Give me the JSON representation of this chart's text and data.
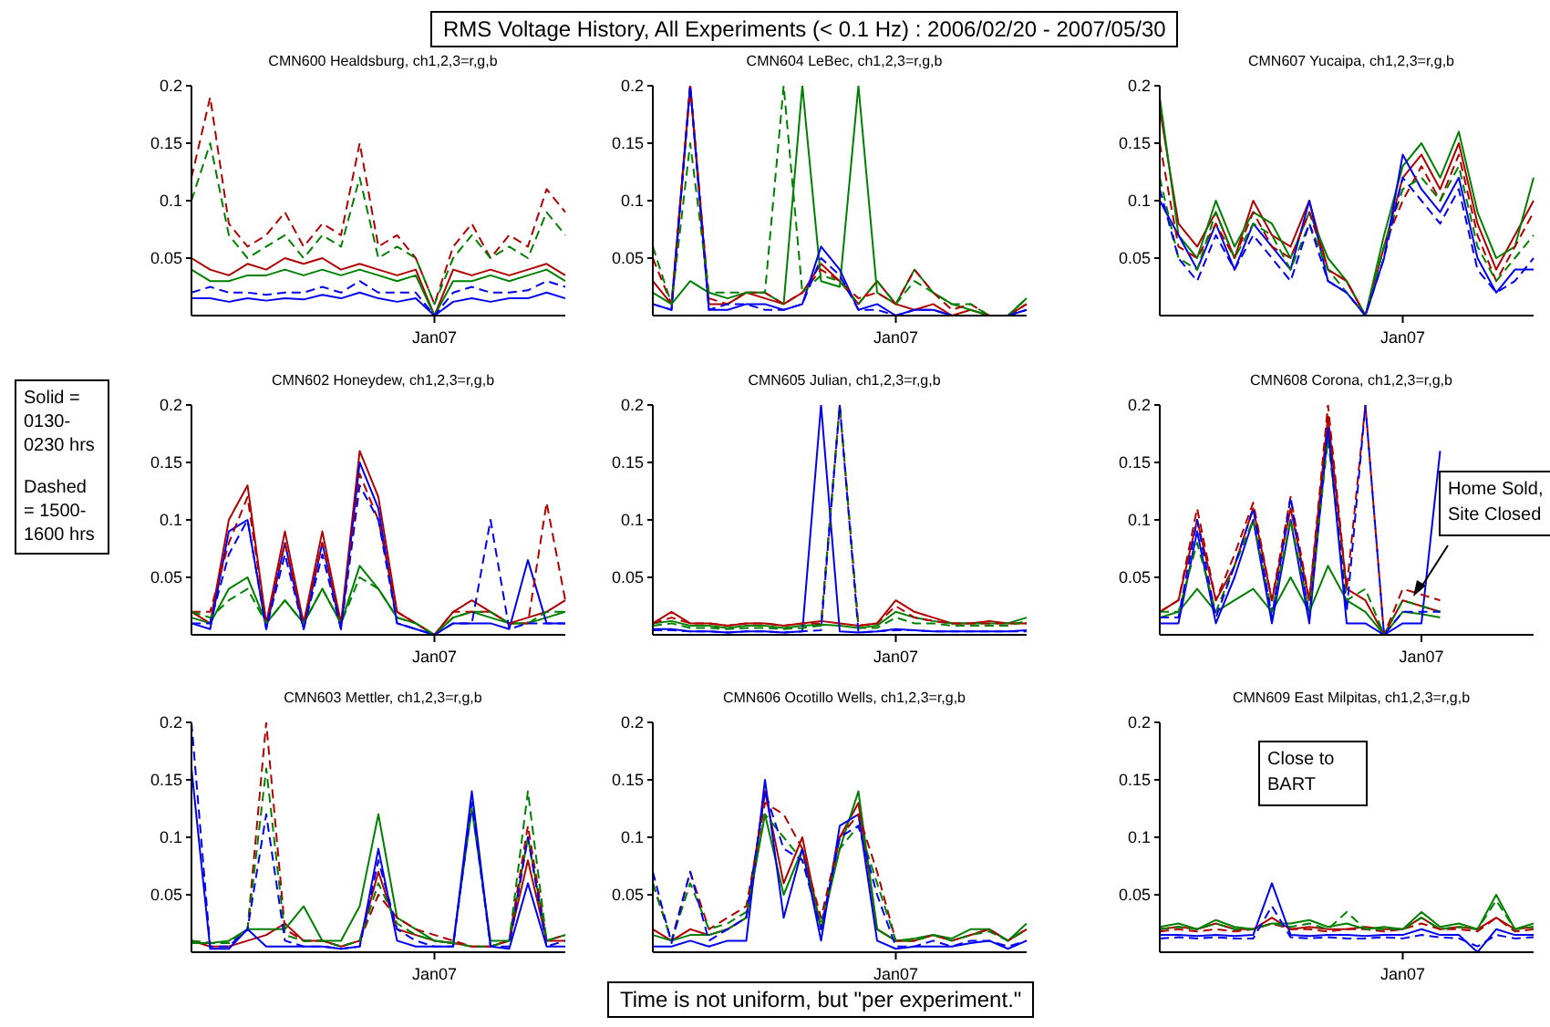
{
  "chart_data": [
    {
      "type": "line",
      "title": "CMN600 Healdsburg, ch1,2,3=r,g,b",
      "categories": [
        null,
        null,
        null,
        null,
        null,
        null,
        null,
        null,
        null,
        null,
        null,
        null,
        null,
        "Jan07",
        null,
        null,
        null,
        null,
        null,
        null,
        null
      ],
      "ylim": [
        0,
        0.2
      ],
      "yticks": [
        0.05,
        0.1,
        0.15,
        0.2
      ],
      "series": [
        {
          "color": "#b00000",
          "values": [
            0.05,
            0.04,
            0.035,
            0.045,
            0.04,
            0.05,
            0.045,
            0.05,
            0.04,
            0.045,
            0.04,
            0.035,
            0.04,
            0,
            0.04,
            0.035,
            0.04,
            0.035,
            0.04,
            0.045,
            0.035
          ]
        },
        {
          "color": "#008000",
          "values": [
            0.04,
            0.03,
            0.03,
            0.035,
            0.035,
            0.04,
            0.035,
            0.04,
            0.035,
            0.04,
            0.035,
            0.03,
            0.035,
            0,
            0.03,
            0.03,
            0.035,
            0.03,
            0.035,
            0.04,
            0.03
          ]
        },
        {
          "color": "#0000ee",
          "values": [
            0.015,
            0.015,
            0.012,
            0.015,
            0.013,
            0.015,
            0.014,
            0.018,
            0.015,
            0.02,
            0.015,
            0.012,
            0.015,
            0,
            0.012,
            0.015,
            0.012,
            0.015,
            0.015,
            0.02,
            0.015
          ]
        },
        {
          "color": "#b00000",
          "line_style": "dashed",
          "values": [
            0.12,
            0.19,
            0.08,
            0.06,
            0.07,
            0.09,
            0.06,
            0.08,
            0.07,
            0.15,
            0.06,
            0.07,
            0.05,
            0.01,
            0.06,
            0.08,
            0.05,
            0.07,
            0.06,
            0.11,
            0.09
          ]
        },
        {
          "color": "#008000",
          "line_style": "dashed",
          "values": [
            0.1,
            0.15,
            0.07,
            0.05,
            0.06,
            0.07,
            0.05,
            0.07,
            0.06,
            0.12,
            0.05,
            0.06,
            0.05,
            0.01,
            0.05,
            0.07,
            0.05,
            0.06,
            0.05,
            0.09,
            0.07
          ]
        },
        {
          "color": "#0000ee",
          "line_style": "dashed",
          "values": [
            0.02,
            0.025,
            0.02,
            0.02,
            0.018,
            0.02,
            0.02,
            0.025,
            0.02,
            0.03,
            0.02,
            0.02,
            0.02,
            0,
            0.02,
            0.025,
            0.02,
            0.02,
            0.022,
            0.03,
            0.025
          ]
        }
      ]
    },
    {
      "type": "line",
      "title": "CMN604 LeBec, ch1,2,3=r,g,b",
      "categories": [
        null,
        null,
        null,
        null,
        null,
        null,
        null,
        null,
        null,
        null,
        null,
        null,
        null,
        "Jan07",
        null,
        null,
        null,
        null,
        null,
        null,
        null
      ],
      "ylim": [
        0,
        0.2
      ],
      "yticks": [
        0.05,
        0.1,
        0.15,
        0.2
      ],
      "series": [
        {
          "color": "#b00000",
          "values": [
            0.03,
            0.01,
            0.2,
            0.01,
            0.01,
            0.02,
            0.015,
            0.01,
            0.02,
            0.045,
            0.03,
            0.01,
            0.03,
            0.01,
            0.005,
            0.01,
            0,
            0.005,
            0,
            0,
            0.01
          ]
        },
        {
          "color": "#008000",
          "values": [
            0.02,
            0.01,
            0.03,
            0.02,
            0.015,
            0.02,
            0.02,
            0.01,
            0.2,
            0.03,
            0.025,
            0.2,
            0.02,
            0.01,
            0.04,
            0.02,
            0.01,
            0.005,
            0,
            0,
            0.015
          ]
        },
        {
          "color": "#0000ee",
          "values": [
            0.01,
            0.005,
            0.2,
            0.005,
            0.005,
            0.01,
            0.01,
            0.005,
            0.01,
            0.06,
            0.04,
            0.005,
            0.01,
            0,
            0.005,
            0.005,
            0,
            0,
            0,
            0,
            0.005
          ]
        },
        {
          "color": "#b00000",
          "line_style": "dashed",
          "values": [
            0.05,
            0.01,
            0.2,
            0.015,
            0.01,
            0.02,
            0.02,
            0.01,
            0.02,
            0.04,
            0.03,
            0.015,
            0.02,
            0.01,
            0.04,
            0.02,
            0.005,
            0.01,
            0,
            0,
            0.01
          ]
        },
        {
          "color": "#008000",
          "line_style": "dashed",
          "values": [
            0.06,
            0.01,
            0.15,
            0.02,
            0.02,
            0.02,
            0.02,
            0.2,
            0.02,
            0.035,
            0.03,
            0.01,
            0.03,
            0.01,
            0.03,
            0.02,
            0.01,
            0.01,
            0,
            0,
            0.015
          ]
        },
        {
          "color": "#0000ee",
          "line_style": "dashed",
          "values": [
            0.01,
            0.005,
            0.2,
            0.005,
            0.01,
            0.01,
            0.005,
            0.005,
            0.01,
            0.05,
            0.035,
            0.005,
            0.005,
            0,
            0.005,
            0.005,
            0,
            0,
            0,
            0,
            0.005
          ]
        }
      ]
    },
    {
      "type": "line",
      "title": "CMN607 Yucaipa, ch1,2,3=r,g,b",
      "categories": [
        null,
        null,
        null,
        null,
        null,
        null,
        null,
        null,
        null,
        null,
        null,
        null,
        null,
        "Jan07",
        null,
        null,
        null,
        null,
        null,
        null,
        null
      ],
      "ylim": [
        0,
        0.2
      ],
      "yticks": [
        0.05,
        0.1,
        0.15,
        0.2
      ],
      "series": [
        {
          "color": "#b00000",
          "values": [
            0.18,
            0.08,
            0.06,
            0.09,
            0.05,
            0.1,
            0.07,
            0.06,
            0.1,
            0.04,
            0.03,
            0,
            0.06,
            0.12,
            0.14,
            0.11,
            0.15,
            0.08,
            0.04,
            0.07,
            0.1
          ]
        },
        {
          "color": "#008000",
          "values": [
            0.19,
            0.07,
            0.05,
            0.1,
            0.06,
            0.09,
            0.08,
            0.05,
            0.09,
            0.05,
            0.03,
            0,
            0.07,
            0.13,
            0.15,
            0.12,
            0.16,
            0.09,
            0.05,
            0.06,
            0.12
          ]
        },
        {
          "color": "#0000ee",
          "values": [
            0.1,
            0.07,
            0.04,
            0.08,
            0.04,
            0.08,
            0.06,
            0.04,
            0.1,
            0.03,
            0.02,
            0,
            0.05,
            0.14,
            0.11,
            0.09,
            0.12,
            0.05,
            0.02,
            0.04,
            0.04
          ]
        },
        {
          "color": "#b00000",
          "line_style": "dashed",
          "values": [
            0.15,
            0.06,
            0.05,
            0.08,
            0.05,
            0.09,
            0.06,
            0.05,
            0.09,
            0.04,
            0.03,
            0,
            0.06,
            0.1,
            0.13,
            0.1,
            0.14,
            0.07,
            0.03,
            0.06,
            0.09
          ]
        },
        {
          "color": "#008000",
          "line_style": "dashed",
          "values": [
            0.12,
            0.05,
            0.04,
            0.09,
            0.05,
            0.08,
            0.07,
            0.04,
            0.08,
            0.04,
            0.02,
            0,
            0.06,
            0.11,
            0.12,
            0.1,
            0.13,
            0.06,
            0.03,
            0.05,
            0.07
          ]
        },
        {
          "color": "#0000ee",
          "line_style": "dashed",
          "values": [
            0.11,
            0.05,
            0.03,
            0.07,
            0.04,
            0.07,
            0.05,
            0.03,
            0.08,
            0.03,
            0.02,
            0,
            0.05,
            0.12,
            0.1,
            0.08,
            0.11,
            0.04,
            0.02,
            0.03,
            0.05
          ]
        }
      ]
    },
    {
      "type": "line",
      "title": "CMN602 Honeydew, ch1,2,3=r,g,b",
      "categories": [
        null,
        null,
        null,
        null,
        null,
        null,
        null,
        null,
        null,
        null,
        null,
        null,
        null,
        "Jan07",
        null,
        null,
        null,
        null,
        null,
        null,
        null
      ],
      "ylim": [
        0,
        0.2
      ],
      "yticks": [
        0.05,
        0.1,
        0.15,
        0.2
      ],
      "series": [
        {
          "color": "#b00000",
          "values": [
            0.02,
            0.01,
            0.1,
            0.13,
            0.01,
            0.09,
            0.01,
            0.09,
            0.01,
            0.16,
            0.12,
            0.02,
            0.01,
            0,
            0.02,
            0.03,
            0.02,
            0.01,
            0.015,
            0.02,
            0.03
          ]
        },
        {
          "color": "#008000",
          "values": [
            0.015,
            0.01,
            0.04,
            0.05,
            0.01,
            0.03,
            0.01,
            0.04,
            0.01,
            0.06,
            0.04,
            0.015,
            0.01,
            0,
            0.015,
            0.02,
            0.015,
            0.01,
            0.01,
            0.015,
            0.02
          ]
        },
        {
          "color": "#0000ee",
          "values": [
            0.01,
            0.005,
            0.09,
            0.1,
            0.005,
            0.08,
            0.005,
            0.08,
            0.005,
            0.15,
            0.11,
            0.01,
            0.005,
            0,
            0.01,
            0.01,
            0.01,
            0.005,
            0.065,
            0.01,
            0.01
          ]
        },
        {
          "color": "#b00000",
          "line_style": "dashed",
          "values": [
            0.02,
            0.02,
            0.08,
            0.12,
            0.01,
            0.08,
            0.01,
            0.08,
            0.01,
            0.14,
            0.1,
            0.02,
            0.01,
            0,
            0.02,
            0.02,
            0.02,
            0.01,
            0.01,
            0.115,
            0.03
          ]
        },
        {
          "color": "#008000",
          "line_style": "dashed",
          "values": [
            0.02,
            0.015,
            0.03,
            0.04,
            0.01,
            0.03,
            0.01,
            0.04,
            0.01,
            0.05,
            0.04,
            0.015,
            0.01,
            0,
            0.015,
            0.02,
            0.02,
            0.01,
            0.01,
            0.02,
            0.02
          ]
        },
        {
          "color": "#0000ee",
          "line_style": "dashed",
          "values": [
            0.01,
            0.01,
            0.07,
            0.1,
            0.005,
            0.07,
            0.005,
            0.07,
            0.005,
            0.13,
            0.1,
            0.01,
            0.005,
            0,
            0.01,
            0.01,
            0.1,
            0.005,
            0.01,
            0.01,
            0.01
          ]
        }
      ]
    },
    {
      "type": "line",
      "title": "CMN605 Julian, ch1,2,3=r,g,b",
      "categories": [
        null,
        null,
        null,
        null,
        null,
        null,
        null,
        null,
        null,
        null,
        null,
        null,
        null,
        "Jan07",
        null,
        null,
        null,
        null,
        null,
        null,
        null
      ],
      "ylim": [
        0,
        0.2
      ],
      "yticks": [
        0.05,
        0.1,
        0.15,
        0.2
      ],
      "series": [
        {
          "color": "#b00000",
          "values": [
            0.01,
            0.02,
            0.01,
            0.01,
            0.008,
            0.01,
            0.01,
            0.008,
            0.01,
            0.012,
            0.01,
            0.008,
            0.01,
            0.03,
            0.02,
            0.015,
            0.01,
            0.01,
            0.012,
            0.01,
            0.01
          ]
        },
        {
          "color": "#008000",
          "values": [
            0.01,
            0.012,
            0.008,
            0.008,
            0.006,
            0.008,
            0.008,
            0.006,
            0.008,
            0.009,
            0.008,
            0.006,
            0.008,
            0.02,
            0.015,
            0.012,
            0.01,
            0.01,
            0.01,
            0.01,
            0.015
          ]
        },
        {
          "color": "#0000ee",
          "values": [
            0.005,
            0.005,
            0.003,
            0.003,
            0.002,
            0.003,
            0.003,
            0.002,
            0.003,
            0.2,
            0.003,
            0.002,
            0.003,
            0.005,
            0.004,
            0.003,
            0.003,
            0.003,
            0.003,
            0.003,
            0.004
          ]
        },
        {
          "color": "#b00000",
          "line_style": "dashed",
          "values": [
            0.01,
            0.015,
            0.01,
            0.01,
            0.008,
            0.01,
            0.01,
            0.008,
            0.01,
            0.01,
            0.2,
            0.008,
            0.01,
            0.025,
            0.015,
            0.012,
            0.01,
            0.01,
            0.01,
            0.01,
            0.01
          ]
        },
        {
          "color": "#008000",
          "line_style": "dashed",
          "values": [
            0.008,
            0.01,
            0.006,
            0.006,
            0.005,
            0.006,
            0.006,
            0.005,
            0.006,
            0.008,
            0.2,
            0.006,
            0.006,
            0.015,
            0.01,
            0.01,
            0.008,
            0.008,
            0.008,
            0.008,
            0.012
          ]
        },
        {
          "color": "#0000ee",
          "line_style": "dashed",
          "values": [
            0.004,
            0.004,
            0.003,
            0.003,
            0.002,
            0.003,
            0.003,
            0.002,
            0.003,
            0.004,
            0.2,
            0.002,
            0.003,
            0.004,
            0.004,
            0.003,
            0.003,
            0.003,
            0.003,
            0.003,
            0.003
          ]
        }
      ]
    },
    {
      "type": "line",
      "title": "CMN608 Corona, ch1,2,3=r,g,b",
      "categories": [
        null,
        null,
        null,
        null,
        null,
        null,
        null,
        null,
        null,
        null,
        null,
        null,
        null,
        null,
        "Jan07",
        null,
        null,
        null,
        null,
        null,
        null
      ],
      "ylim": [
        0,
        0.2
      ],
      "yticks": [
        0.05,
        0.1,
        0.15,
        0.2
      ],
      "annotations": [
        "Home Sold, Site Closed"
      ],
      "series": [
        {
          "color": "#b00000",
          "values": [
            0.02,
            0.03,
            0.1,
            0.03,
            0.06,
            0.11,
            0.03,
            0.11,
            0.03,
            0.19,
            0.04,
            0.03,
            0,
            0.03,
            0.025,
            0.02,
            null,
            null,
            null,
            null,
            null
          ]
        },
        {
          "color": "#008000",
          "values": [
            0.015,
            0.02,
            0.04,
            0.02,
            0.03,
            0.04,
            0.02,
            0.05,
            0.02,
            0.06,
            0.03,
            0.02,
            0,
            0.02,
            0.018,
            0.015,
            null,
            null,
            null,
            null,
            null
          ]
        },
        {
          "color": "#0000ee",
          "values": [
            0.01,
            0.01,
            0.09,
            0.01,
            0.05,
            0.1,
            0.01,
            0.1,
            0.01,
            0.18,
            0.01,
            0.01,
            0,
            0.01,
            0.01,
            0.16,
            null,
            null,
            null,
            null,
            null
          ]
        },
        {
          "color": "#b00000",
          "line_style": "dashed",
          "values": [
            0.02,
            0.03,
            0.11,
            0.03,
            0.07,
            0.115,
            0.03,
            0.12,
            0.03,
            0.2,
            0.04,
            0.2,
            0,
            0.04,
            0.035,
            0.03,
            null,
            null,
            null,
            null,
            null
          ]
        },
        {
          "color": "#008000",
          "line_style": "dashed",
          "values": [
            0.02,
            0.02,
            0.08,
            0.02,
            0.06,
            0.1,
            0.02,
            0.1,
            0.02,
            0.17,
            0.03,
            0.04,
            0,
            0.03,
            0.025,
            0.02,
            null,
            null,
            null,
            null,
            null
          ]
        },
        {
          "color": "#0000ee",
          "line_style": "dashed",
          "values": [
            0.015,
            0.015,
            0.1,
            0.015,
            0.06,
            0.11,
            0.015,
            0.12,
            0.015,
            0.18,
            0.02,
            0.2,
            0,
            0.02,
            0.02,
            0.02,
            null,
            null,
            null,
            null,
            null
          ]
        }
      ]
    },
    {
      "type": "line",
      "title": "CMN603 Mettler, ch1,2,3=r,g,b",
      "categories": [
        null,
        null,
        null,
        null,
        null,
        null,
        null,
        null,
        null,
        null,
        null,
        null,
        null,
        "Jan07",
        null,
        null,
        null,
        null,
        null,
        null,
        null
      ],
      "ylim": [
        0,
        0.2
      ],
      "yticks": [
        0.05,
        0.1,
        0.15,
        0.2
      ],
      "series": [
        {
          "color": "#b00000",
          "values": [
            0.01,
            0.005,
            0.005,
            0.01,
            0.015,
            0.025,
            0.01,
            0.01,
            0.005,
            0.01,
            0.07,
            0.02,
            0.015,
            0.01,
            0.008,
            0.005,
            0.005,
            0.01,
            0.08,
            0.01,
            0.01
          ]
        },
        {
          "color": "#008000",
          "values": [
            0.008,
            0.008,
            0.01,
            0.02,
            0.02,
            0.02,
            0.04,
            0.01,
            0.01,
            0.04,
            0.12,
            0.03,
            0.02,
            0.01,
            0.008,
            0.125,
            0.01,
            0.01,
            0.1,
            0.01,
            0.015
          ]
        },
        {
          "color": "#0000ee",
          "values": [
            0.16,
            0.003,
            0.003,
            0.02,
            0.005,
            0.005,
            0.005,
            0.005,
            0.003,
            0.005,
            0.09,
            0.01,
            0.005,
            0.005,
            0.005,
            0.14,
            0.005,
            0.003,
            0.06,
            0.005,
            0.005
          ]
        },
        {
          "color": "#b00000",
          "line_style": "dashed",
          "values": [
            0.01,
            0.008,
            0.008,
            0.02,
            0.2,
            0.02,
            0.01,
            0.01,
            0.005,
            0.01,
            0.05,
            0.03,
            0.02,
            0.015,
            0.01,
            0.005,
            0.005,
            0.01,
            0.11,
            0.01,
            0.015
          ]
        },
        {
          "color": "#008000",
          "line_style": "dashed",
          "values": [
            0.01,
            0.008,
            0.008,
            0.02,
            0.16,
            0.015,
            0.01,
            0.01,
            0.005,
            0.01,
            0.06,
            0.025,
            0.015,
            0.01,
            0.008,
            0.005,
            0.005,
            0.01,
            0.14,
            0.01,
            0.015
          ]
        },
        {
          "color": "#0000ee",
          "line_style": "dashed",
          "values": [
            0.2,
            0.005,
            0.005,
            0.02,
            0.12,
            0.01,
            0.005,
            0.005,
            0.003,
            0.005,
            0.08,
            0.02,
            0.01,
            0.005,
            0.005,
            0.13,
            0.005,
            0.005,
            0.1,
            0.005,
            0.01
          ]
        }
      ]
    },
    {
      "type": "line",
      "title": "CMN606 Ocotillo Wells, ch1,2,3=r,g,b",
      "categories": [
        null,
        null,
        null,
        null,
        null,
        null,
        null,
        null,
        null,
        null,
        null,
        null,
        null,
        "Jan07",
        null,
        null,
        null,
        null,
        null,
        null,
        null
      ],
      "ylim": [
        0,
        0.2
      ],
      "yticks": [
        0.05,
        0.1,
        0.15,
        0.2
      ],
      "series": [
        {
          "color": "#b00000",
          "values": [
            0.02,
            0.01,
            0.02,
            0.015,
            0.02,
            0.03,
            0.14,
            0.06,
            0.1,
            0.02,
            0.1,
            0.13,
            0.02,
            0.01,
            0.01,
            0.015,
            0.01,
            0.015,
            0.02,
            0.01,
            0.02
          ]
        },
        {
          "color": "#008000",
          "values": [
            0.015,
            0.01,
            0.015,
            0.015,
            0.02,
            0.03,
            0.12,
            0.05,
            0.09,
            0.02,
            0.09,
            0.14,
            0.02,
            0.01,
            0.012,
            0.015,
            0.012,
            0.02,
            0.02,
            0.01,
            0.025
          ]
        },
        {
          "color": "#0000ee",
          "values": [
            0.005,
            0.005,
            0.01,
            0.005,
            0.01,
            0.01,
            0.15,
            0.03,
            0.09,
            0.01,
            0.11,
            0.12,
            0.01,
            0.003,
            0.005,
            0.005,
            0.005,
            0.008,
            0.01,
            0.003,
            0.01
          ]
        },
        {
          "color": "#b00000",
          "line_style": "dashed",
          "values": [
            0.06,
            0.01,
            0.07,
            0.02,
            0.03,
            0.04,
            0.13,
            0.12,
            0.09,
            0.03,
            0.1,
            0.12,
            0.07,
            0.01,
            0.01,
            0.015,
            0.01,
            0.015,
            0.02,
            0.01,
            0.02
          ]
        },
        {
          "color": "#008000",
          "line_style": "dashed",
          "values": [
            0.06,
            0.01,
            0.06,
            0.02,
            0.025,
            0.035,
            0.12,
            0.1,
            0.08,
            0.025,
            0.09,
            0.11,
            0.06,
            0.01,
            0.01,
            0.015,
            0.01,
            0.015,
            0.018,
            0.01,
            0.02
          ]
        },
        {
          "color": "#0000ee",
          "line_style": "dashed",
          "values": [
            0.07,
            0.008,
            0.07,
            0.01,
            0.02,
            0.03,
            0.14,
            0.09,
            0.08,
            0.02,
            0.1,
            0.11,
            0.05,
            0.005,
            0.005,
            0.01,
            0.005,
            0.01,
            0.01,
            0.005,
            0.01
          ]
        }
      ]
    },
    {
      "type": "line",
      "title": "CMN609 East Milpitas, ch1,2,3=r,g,b",
      "categories": [
        null,
        null,
        null,
        null,
        null,
        null,
        null,
        null,
        null,
        null,
        null,
        null,
        null,
        "Jan07",
        null,
        null,
        null,
        null,
        null,
        null,
        null
      ],
      "ylim": [
        0,
        0.2
      ],
      "yticks": [
        0.05,
        0.1,
        0.15,
        0.2
      ],
      "annotations": [
        "Close to BART"
      ],
      "series": [
        {
          "color": "#b00000",
          "values": [
            0.02,
            0.022,
            0.02,
            0.025,
            0.02,
            0.02,
            0.03,
            0.02,
            0.022,
            0.02,
            0.02,
            0.022,
            0.02,
            0.02,
            0.03,
            0.02,
            0.022,
            0.02,
            0.03,
            0.02,
            0.022
          ]
        },
        {
          "color": "#008000",
          "values": [
            0.022,
            0.025,
            0.02,
            0.028,
            0.022,
            0.02,
            0.025,
            0.025,
            0.028,
            0.022,
            0.025,
            0.02,
            0.022,
            0.02,
            0.035,
            0.022,
            0.025,
            0.02,
            0.05,
            0.02,
            0.025
          ]
        },
        {
          "color": "#0000ee",
          "values": [
            0.015,
            0.015,
            0.014,
            0.015,
            0.014,
            0.015,
            0.06,
            0.015,
            0.014,
            0.015,
            0.015,
            0.014,
            0.015,
            0.015,
            0.02,
            0.015,
            0.015,
            0,
            0.02,
            0.015,
            0.015
          ]
        },
        {
          "color": "#b00000",
          "line_style": "dashed",
          "values": [
            0.018,
            0.02,
            0.018,
            0.02,
            0.018,
            0.02,
            0.025,
            0.02,
            0.02,
            0.018,
            0.02,
            0.02,
            0.018,
            0.02,
            0.025,
            0.02,
            0.02,
            0.018,
            0.03,
            0.018,
            0.02
          ]
        },
        {
          "color": "#008000",
          "line_style": "dashed",
          "values": [
            0.02,
            0.022,
            0.02,
            0.025,
            0.02,
            0.02,
            0.025,
            0.022,
            0.025,
            0.02,
            0.035,
            0.02,
            0.02,
            0.02,
            0.03,
            0.02,
            0.022,
            0.02,
            0.045,
            0.02,
            0.022
          ]
        },
        {
          "color": "#0000ee",
          "line_style": "dashed",
          "values": [
            0.012,
            0.013,
            0.012,
            0.013,
            0.012,
            0.012,
            0.04,
            0.013,
            0.012,
            0.013,
            0.012,
            0.012,
            0.013,
            0.012,
            0.015,
            0.013,
            0.012,
            0.005,
            0.015,
            0.012,
            0.013
          ]
        }
      ]
    },
    {
      "type": "other",
      "title": "RMS Voltage History, All Experiments (< 0.1 Hz) : 2006/02/20 - 2007/05/30",
      "annotations": [
        "Solid = 0130-0230 hrs",
        "Dashed = 1500-1600 hrs",
        "Time is not uniform, but \"per experiment.\""
      ]
    }
  ]
}
